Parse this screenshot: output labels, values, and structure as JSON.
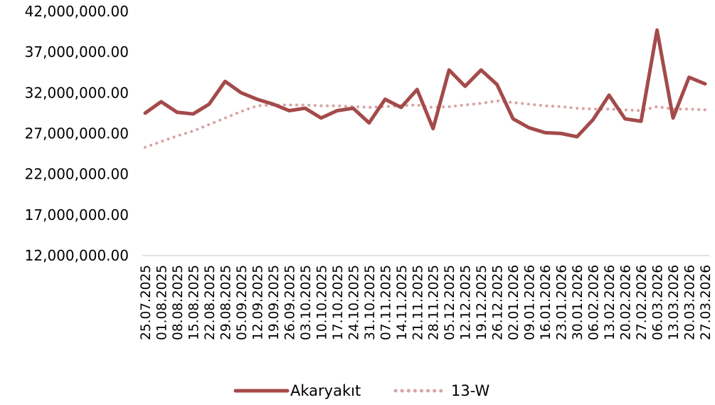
{
  "chart_data": {
    "type": "line",
    "title": "",
    "xlabel": "",
    "ylabel": "",
    "ylim": [
      12000000,
      42000000
    ],
    "y_ticks": [
      12000000,
      17000000,
      22000000,
      27000000,
      32000000,
      37000000,
      42000000
    ],
    "y_tick_labels": [
      "12,000,000.00",
      "17,000,000.00",
      "22,000,000.00",
      "27,000,000.00",
      "32,000,000.00",
      "37,000,000.00",
      "42,000,000.00"
    ],
    "grid": false,
    "legend_position": "bottom",
    "x": [
      "25.07.2025",
      "01.08.2025",
      "08.08.2025",
      "15.08.2025",
      "22.08.2025",
      "29.08.2025",
      "05.09.2025",
      "12.09.2025",
      "19.09.2025",
      "26.09.2025",
      "03.10.2025",
      "10.10.2025",
      "17.10.2025",
      "24.10.2025",
      "31.10.2025",
      "07.11.2025",
      "14.11.2025",
      "21.11.2025",
      "28.11.2025",
      "05.12.2025",
      "12.12.2025",
      "19.12.2025",
      "26.12.2025",
      "02.01.2026",
      "09.01.2026",
      "16.01.2026",
      "23.01.2026",
      "30.01.2026",
      "06.02.2026",
      "13.02.2026",
      "20.02.2026",
      "27.02.2026",
      "06.03.2026",
      "13.03.2026",
      "20.03.2026",
      "27.03.2026"
    ],
    "series": [
      {
        "name": "Akaryakıt",
        "color": "#a44a4a",
        "style": "solid",
        "values": [
          29500000,
          30900000,
          29600000,
          29400000,
          30600000,
          33400000,
          32000000,
          31200000,
          30600000,
          29800000,
          30100000,
          28900000,
          29800000,
          30100000,
          28300000,
          31200000,
          30200000,
          32400000,
          27600000,
          34800000,
          32800000,
          34800000,
          33000000,
          28800000,
          27700000,
          27100000,
          27000000,
          26600000,
          28700000,
          31700000,
          28800000,
          28500000,
          39700000,
          28900000,
          33900000,
          33100000
        ]
      },
      {
        "name": "13-W",
        "color": "#d9a3a3",
        "style": "dotted",
        "values": [
          25300000,
          26000000,
          26700000,
          27300000,
          28100000,
          28900000,
          29700000,
          30400000,
          30500000,
          30500000,
          30500000,
          30400000,
          30400000,
          30300000,
          30200000,
          30300000,
          30400000,
          30500000,
          30200000,
          30300000,
          30500000,
          30700000,
          31000000,
          30800000,
          30600000,
          30400000,
          30300000,
          30100000,
          30000000,
          30000000,
          29900000,
          29800000,
          30300000,
          30000000,
          30000000,
          29900000
        ]
      }
    ]
  }
}
